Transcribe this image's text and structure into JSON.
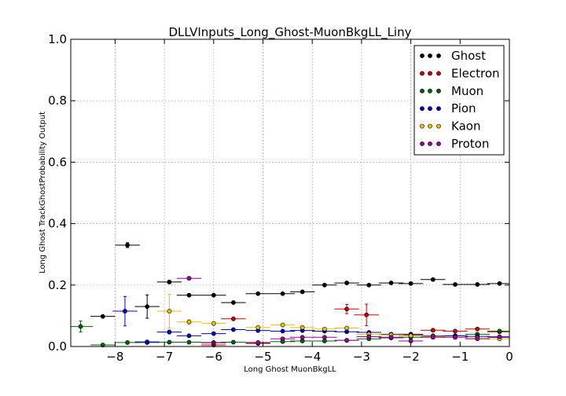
{
  "chart_data": {
    "type": "scatter",
    "title": "DLLVInputs_Long_Ghost-MuonBkgLL_Liny",
    "xlabel": "Long Ghost MuonBkgLL",
    "ylabel": "Long Ghost TrackGhostProbability Output",
    "xlim": [
      -8.9,
      0
    ],
    "ylim": [
      0,
      1.0
    ],
    "xticks": [
      -8,
      -7,
      -6,
      -5,
      -4,
      -3,
      -2,
      -1,
      0
    ],
    "xtick_labels": [
      "−8",
      "−7",
      "−6",
      "−5",
      "−4",
      "−3",
      "−2",
      "−1",
      "0"
    ],
    "yticks": [
      0.0,
      0.2,
      0.4,
      0.6,
      0.8,
      1.0
    ],
    "ytick_labels": [
      "0.0",
      "0.2",
      "0.4",
      "0.6",
      "0.8",
      "1.0"
    ],
    "grid": true,
    "legend_position": "top-right",
    "bin_half_width": 0.25,
    "series": [
      {
        "name": "Ghost",
        "color": "#000000",
        "x": [
          -8.25,
          -7.75,
          -7.35,
          -6.9,
          -6.5,
          -6.0,
          -5.6,
          -5.1,
          -4.6,
          -4.2,
          -3.75,
          -3.3,
          -2.85,
          -2.4,
          -2.0,
          -1.55,
          -1.1,
          -0.65,
          -0.2
        ],
        "y": [
          0.098,
          0.33,
          0.13,
          0.21,
          0.167,
          0.167,
          0.143,
          0.172,
          0.172,
          0.178,
          0.2,
          0.207,
          0.2,
          0.207,
          0.205,
          0.218,
          0.202,
          0.202,
          0.205
        ],
        "yerr": [
          0.003,
          0.008,
          0.038,
          0.005,
          0.004,
          0.003,
          0.003,
          0.002,
          0.002,
          0.002,
          0.002,
          0.002,
          0.002,
          0.002,
          0.002,
          0.002,
          0.002,
          0.002,
          0.002
        ]
      },
      {
        "name": "Electron",
        "color": "#cc0000",
        "x": [
          -6.0,
          -5.6,
          -5.1,
          -3.3,
          -2.9,
          -2.4,
          -2.0,
          -1.55,
          -1.1,
          -0.65,
          -0.2
        ],
        "y": [
          0.005,
          0.09,
          0.01,
          0.122,
          0.103,
          0.038,
          0.04,
          0.053,
          0.05,
          0.057,
          0.048
        ],
        "yerr": [
          0.004,
          0.004,
          0.004,
          0.015,
          0.035,
          0.004,
          0.004,
          0.004,
          0.003,
          0.003,
          0.003
        ]
      },
      {
        "name": "Muon",
        "color": "#006400",
        "x": [
          -8.7,
          -8.25,
          -7.75,
          -7.35,
          -6.9,
          -6.5,
          -6.0,
          -5.6,
          -5.1,
          -4.6,
          -4.2,
          -3.75,
          -3.3,
          -2.85,
          -2.4,
          -2.0,
          -1.55,
          -1.1,
          -0.65,
          -0.2
        ],
        "y": [
          0.065,
          0.005,
          0.013,
          0.013,
          0.014,
          0.014,
          0.013,
          0.014,
          0.012,
          0.016,
          0.018,
          0.018,
          0.02,
          0.025,
          0.028,
          0.03,
          0.032,
          0.035,
          0.04,
          0.05
        ],
        "yerr": [
          0.018,
          0.002,
          0.002,
          0.002,
          0.002,
          0.002,
          0.002,
          0.002,
          0.002,
          0.002,
          0.002,
          0.002,
          0.002,
          0.002,
          0.002,
          0.002,
          0.002,
          0.002,
          0.002,
          0.002
        ]
      },
      {
        "name": "Pion",
        "color": "#0000cc",
        "x": [
          -7.8,
          -7.35,
          -6.9,
          -6.5,
          -6.0,
          -5.6,
          -5.1,
          -4.6,
          -4.2,
          -3.75,
          -3.3,
          -2.85,
          -2.4,
          -2.0,
          -1.55,
          -1.1,
          -0.65,
          -0.2
        ],
        "y": [
          0.115,
          0.015,
          0.047,
          0.035,
          0.042,
          0.055,
          0.052,
          0.05,
          0.052,
          0.05,
          0.048,
          0.046,
          0.04,
          0.038,
          0.035,
          0.035,
          0.033,
          0.03
        ],
        "yerr": [
          0.048,
          0.004,
          0.006,
          0.003,
          0.003,
          0.002,
          0.002,
          0.002,
          0.002,
          0.002,
          0.002,
          0.002,
          0.002,
          0.002,
          0.002,
          0.002,
          0.002,
          0.002
        ]
      },
      {
        "name": "Kaon",
        "color": "#e6c200",
        "x": [
          -6.9,
          -6.5,
          -6.0,
          -5.1,
          -4.6,
          -4.2,
          -3.75,
          -3.3,
          -2.85,
          -2.4,
          -2.0,
          -1.55,
          -1.1,
          -0.65,
          -0.2
        ],
        "y": [
          0.115,
          0.08,
          0.075,
          0.062,
          0.07,
          0.062,
          0.057,
          0.06,
          0.04,
          0.038,
          0.035,
          0.033,
          0.03,
          0.028,
          0.025
        ],
        "yerr": [
          0.055,
          0.008,
          0.004,
          0.003,
          0.003,
          0.003,
          0.003,
          0.003,
          0.003,
          0.002,
          0.002,
          0.002,
          0.002,
          0.002,
          0.002
        ]
      },
      {
        "name": "Proton",
        "color": "#990099",
        "x": [
          -6.5,
          -6.0,
          -5.1,
          -4.6,
          -4.2,
          -3.75,
          -3.3,
          -2.85,
          -2.4,
          -2.0,
          -1.55,
          -1.1,
          -0.65,
          -0.2
        ],
        "y": [
          0.222,
          0.012,
          0.013,
          0.025,
          0.03,
          0.03,
          0.02,
          0.032,
          0.03,
          0.018,
          0.03,
          0.03,
          0.025,
          0.032
        ],
        "yerr": [
          0.004,
          0.003,
          0.003,
          0.003,
          0.003,
          0.003,
          0.003,
          0.003,
          0.003,
          0.003,
          0.003,
          0.003,
          0.003,
          0.003
        ]
      }
    ]
  }
}
